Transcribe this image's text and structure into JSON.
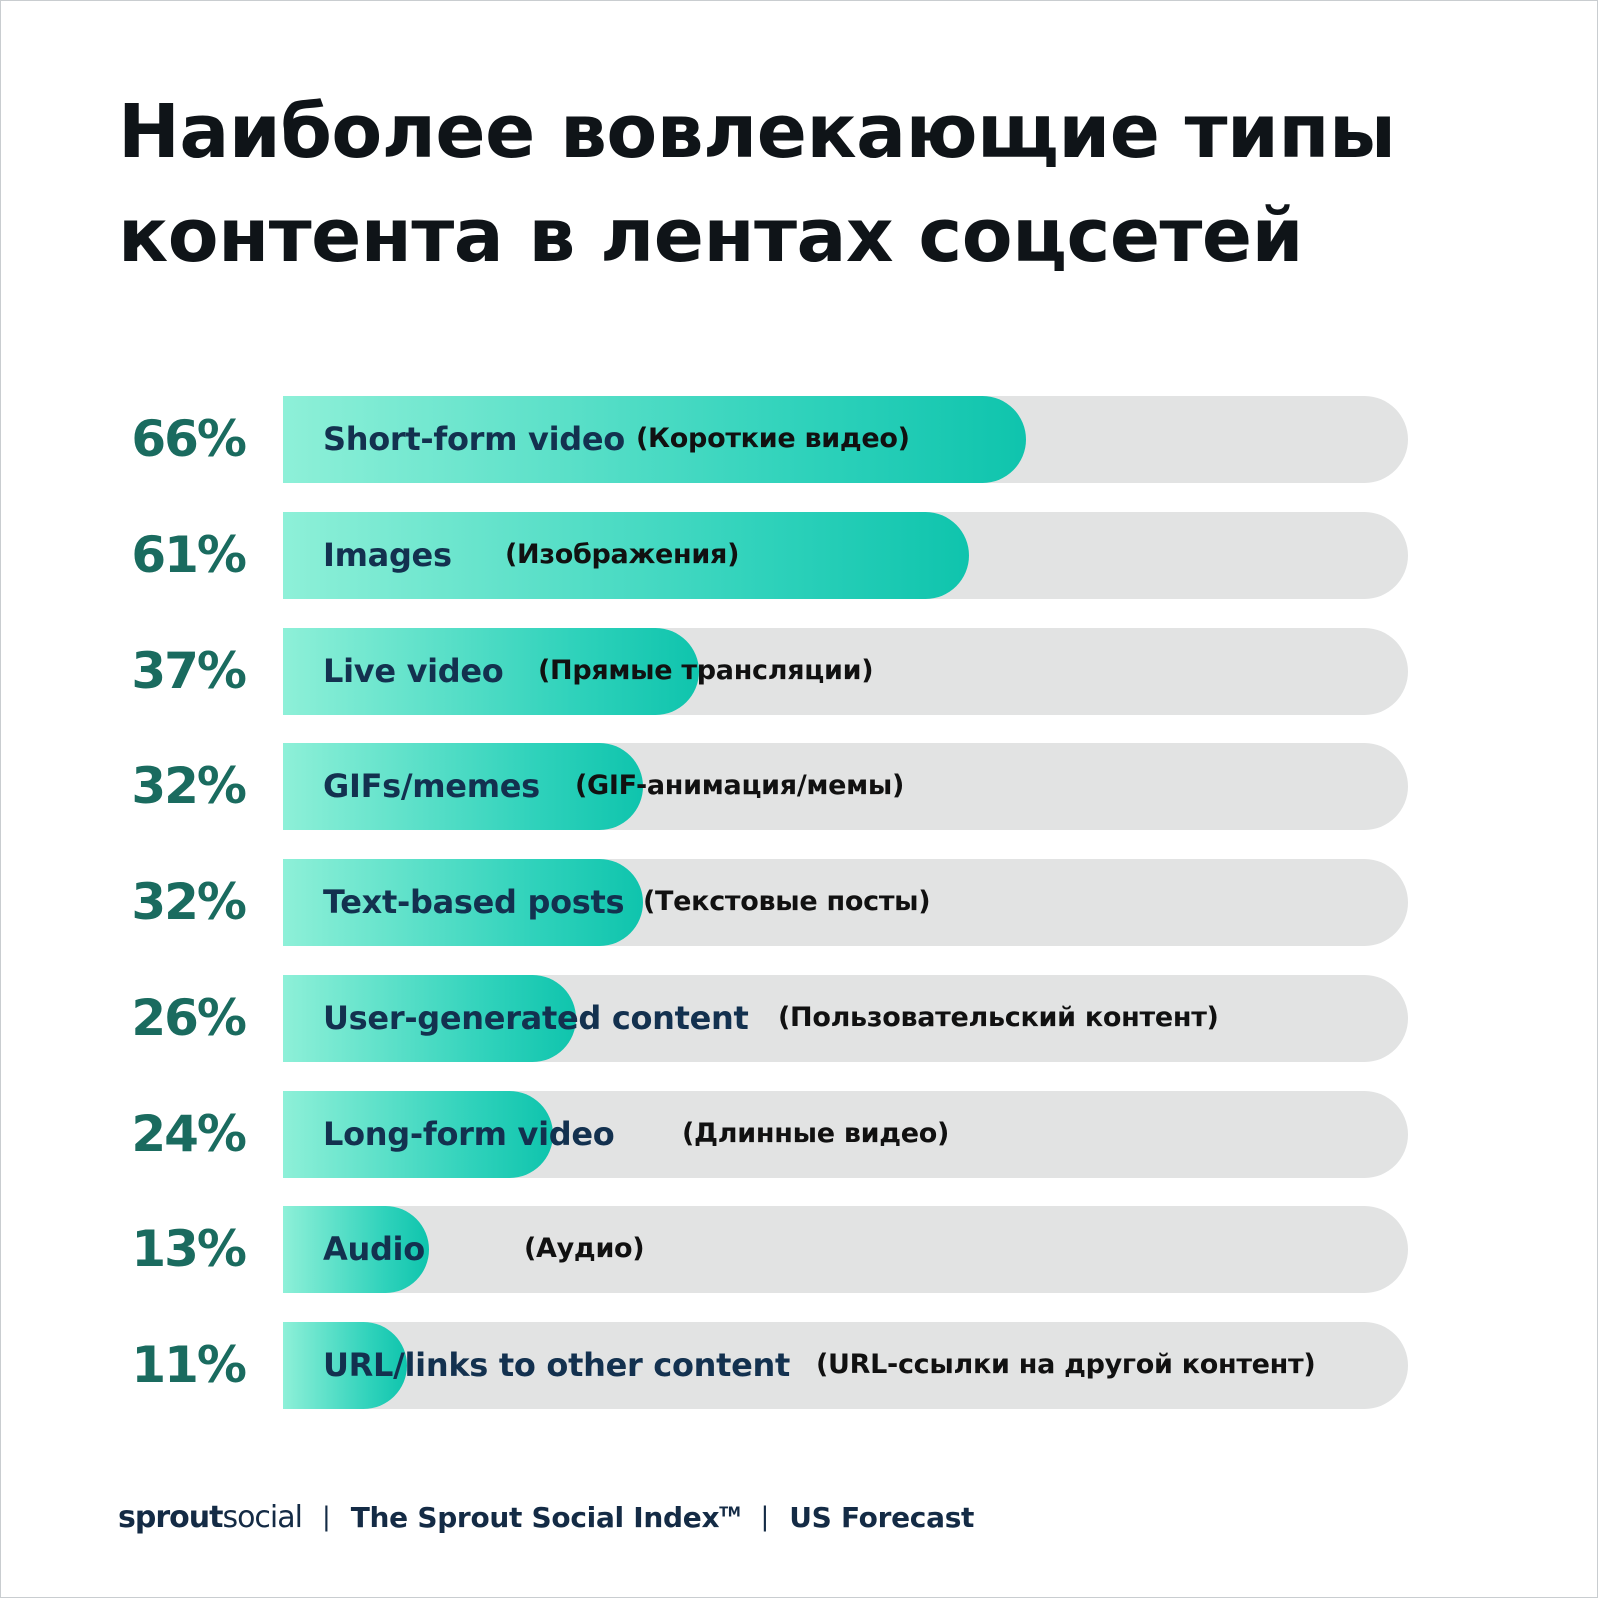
{
  "chart_data": {
    "type": "bar",
    "orientation": "horizontal",
    "title_lines": [
      "Наиболее вовлекающие типы",
      "контента в лентах соцсетей"
    ],
    "unit": "%",
    "xlim": [
      0,
      100
    ],
    "grid": false,
    "legend": "none",
    "bars": [
      {
        "value": 66,
        "value_label": "66%",
        "label": "Short-form video",
        "translation": "(Короткие видео)"
      },
      {
        "value": 61,
        "value_label": "61%",
        "label": "Images",
        "translation": "(Изображения)"
      },
      {
        "value": 37,
        "value_label": "37%",
        "label": "Live video",
        "translation": "(Прямые трансляции)"
      },
      {
        "value": 32,
        "value_label": "32%",
        "label": "GIFs/memes",
        "translation": "(GIF-анимация/мемы)"
      },
      {
        "value": 32,
        "value_label": "32%",
        "label": "Text-based posts",
        "translation": "(Текстовые посты)"
      },
      {
        "value": 26,
        "value_label": "26%",
        "label": "User-generated content",
        "translation": "(Пользовательский контент)"
      },
      {
        "value": 24,
        "value_label": "24%",
        "label": "Long-form video",
        "translation": "(Длинные видео)"
      },
      {
        "value": 13,
        "value_label": "13%",
        "label": "Audio",
        "translation": "(Аудио)"
      },
      {
        "value": 11,
        "value_label": "11%",
        "label": "URL/links to other content",
        "translation": "(URL-ссылки на другой контент)"
      }
    ],
    "colors": {
      "value_text": "#1a6b5f",
      "fill_start": "#8ef0d8",
      "fill_end": "#0fc4ad",
      "track": "#e2e3e3"
    }
  },
  "footer": {
    "brand_bold": "sprout",
    "brand_regular": "social",
    "separator": "|",
    "index_name": "The Sprout Social Index",
    "trademark": "TM",
    "region": "US Forecast"
  }
}
